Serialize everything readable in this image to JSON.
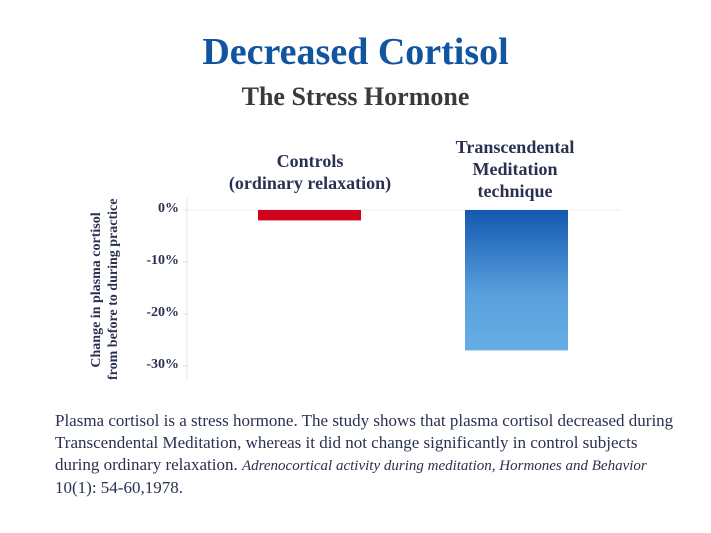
{
  "title": "Decreased Cortisol",
  "subtitle": "The Stress Hormone",
  "chart_data": {
    "type": "bar",
    "title": "Decreased Cortisol",
    "subtitle": "The Stress Hormone",
    "categories": [
      "Controls (ordinary relaxation)",
      "Transcendental Meditation technique"
    ],
    "category_lines": [
      [
        "Controls",
        "(ordinary relaxation)"
      ],
      [
        "Transcendental",
        "Meditation",
        "technique"
      ]
    ],
    "values": [
      -2,
      -27
    ],
    "colors": [
      "#d0021b",
      "#1258b0"
    ],
    "ylabel_lines": [
      "Change in plasma cortisol",
      "from before to during practice"
    ],
    "ylabel": "Change in plasma cortisol from before to during practice",
    "yticks": [
      "0%",
      "-10%",
      "-20%",
      "-30%"
    ],
    "ytick_values": [
      0,
      -10,
      -20,
      -30
    ],
    "ylim": [
      -31,
      0
    ],
    "grid": false
  },
  "caption": {
    "text": "Plasma cortisol is a stress hormone. The study shows that plasma cortisol decreased during Transcendental Meditation, whereas it did not change significantly in control subjects during ordinary relaxation.",
    "citation_italic_1": "Adrenocortical activity during meditation, Hormones and Behavior",
    "citation_rest": "10(1): 54-60,1978."
  }
}
